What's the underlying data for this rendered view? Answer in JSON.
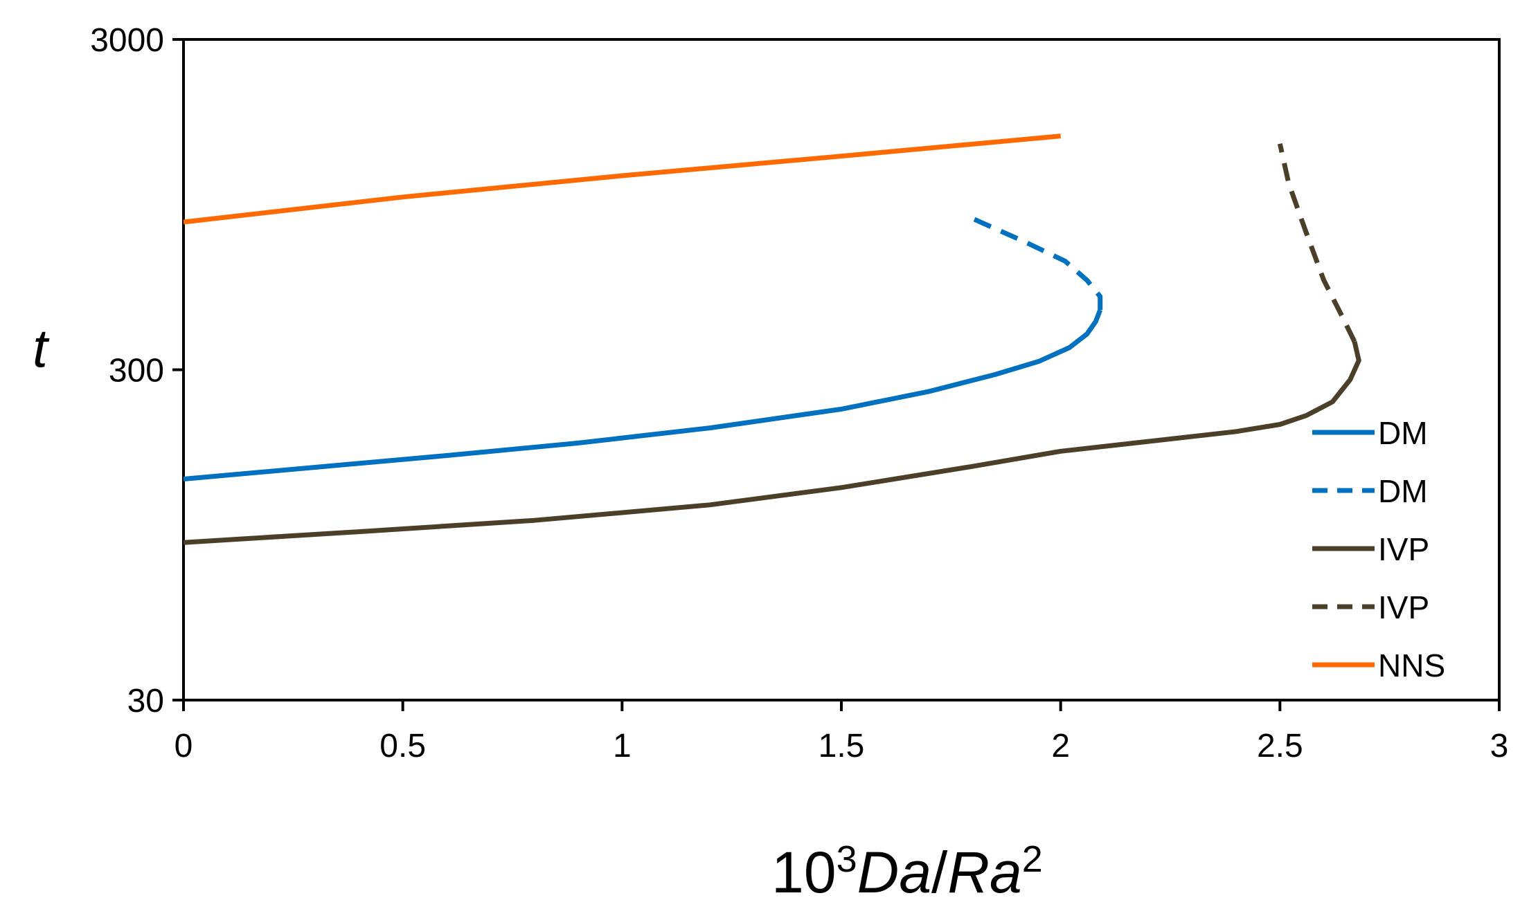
{
  "chart_data": {
    "type": "line",
    "title": "",
    "xlabel": {
      "base": "10",
      "sup1": "3",
      "italic1": "Da",
      "slash": "/",
      "italic2": "Ra",
      "sup2": "2"
    },
    "ylabel": "t",
    "xlim": [
      0,
      3
    ],
    "ylim": [
      30,
      3000
    ],
    "yscale": "log",
    "grid": false,
    "legend_position": "right",
    "x_ticks": [
      "0",
      "0.5",
      "1",
      "1.5",
      "2",
      "2.5",
      "3"
    ],
    "y_ticks": [
      "30",
      "300",
      "3000"
    ],
    "series": [
      {
        "name": "DM",
        "color": "#0070C0",
        "style": "solid",
        "points": [
          [
            0,
            140
          ],
          [
            0.3,
            152
          ],
          [
            0.6,
            165
          ],
          [
            0.9,
            180
          ],
          [
            1.2,
            200
          ],
          [
            1.5,
            228
          ],
          [
            1.7,
            258
          ],
          [
            1.85,
            290
          ],
          [
            1.95,
            318
          ],
          [
            2.02,
            350
          ],
          [
            2.06,
            385
          ],
          [
            2.08,
            420
          ],
          [
            2.09,
            455
          ]
        ]
      },
      {
        "name": "DM",
        "color": "#0070C0",
        "style": "dashed",
        "points": [
          [
            2.09,
            455
          ],
          [
            2.09,
            500
          ],
          [
            2.06,
            560
          ],
          [
            2.01,
            640
          ],
          [
            1.92,
            730
          ],
          [
            1.8,
            860
          ]
        ]
      },
      {
        "name": "IVP",
        "color": "#4B3F2A",
        "style": "solid",
        "points": [
          [
            0,
            90
          ],
          [
            0.4,
            97
          ],
          [
            0.8,
            105
          ],
          [
            1.2,
            117
          ],
          [
            1.5,
            132
          ],
          [
            1.8,
            153
          ],
          [
            2.0,
            170
          ],
          [
            2.2,
            182
          ],
          [
            2.4,
            195
          ],
          [
            2.5,
            205
          ],
          [
            2.56,
            218
          ],
          [
            2.62,
            240
          ],
          [
            2.66,
            280
          ],
          [
            2.68,
            320
          ],
          [
            2.67,
            365
          ]
        ]
      },
      {
        "name": "IVP",
        "color": "#4B3F2A",
        "style": "dashed",
        "points": [
          [
            2.67,
            365
          ],
          [
            2.64,
            440
          ],
          [
            2.6,
            560
          ],
          [
            2.56,
            780
          ],
          [
            2.52,
            1100
          ],
          [
            2.5,
            1450
          ]
        ]
      },
      {
        "name": "NNS",
        "color": "#FF6A00",
        "style": "solid",
        "points": [
          [
            0,
            840
          ],
          [
            0.5,
            1000
          ],
          [
            1.0,
            1160
          ],
          [
            1.5,
            1330
          ],
          [
            2.0,
            1530
          ]
        ]
      }
    ]
  }
}
